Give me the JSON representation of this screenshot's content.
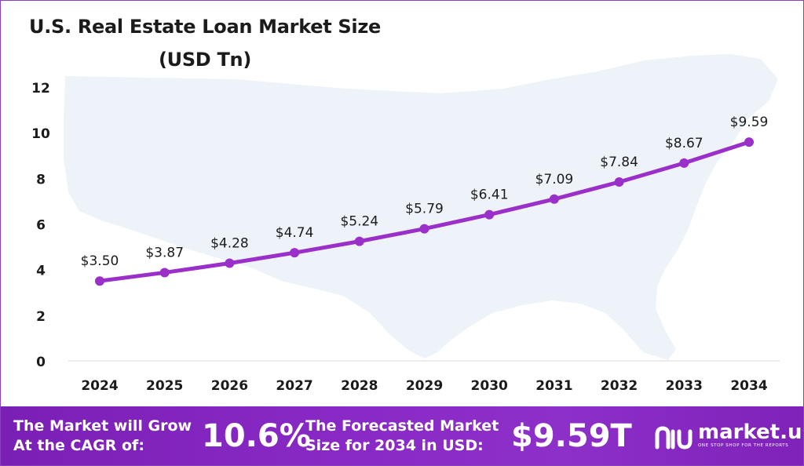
{
  "chart_data": {
    "type": "line",
    "title": "U.S. Real Estate Loan Market Size",
    "subtitle": "(USD Tn)",
    "categories": [
      "2024",
      "2025",
      "2026",
      "2027",
      "2028",
      "2029",
      "2030",
      "2031",
      "2032",
      "2033",
      "2034"
    ],
    "values": [
      3.5,
      3.87,
      4.28,
      4.74,
      5.24,
      5.79,
      6.41,
      7.09,
      7.84,
      8.67,
      9.59
    ],
    "data_labels": [
      "$3.50",
      "$3.87",
      "$4.28",
      "$4.74",
      "$5.24",
      "$5.79",
      "$6.41",
      "$7.09",
      "$7.84",
      "$8.67",
      "$9.59"
    ],
    "y_ticks": [
      "0",
      "2",
      "4",
      "6",
      "8",
      "10",
      "12"
    ],
    "ylim": [
      0,
      12
    ],
    "grid": false,
    "legend": "none",
    "colors": {
      "line": "#9b2fc9",
      "marker": "#9b2fc9",
      "map": "#eef2f9"
    }
  },
  "footer": {
    "cagr_text_line1": "The Market will Grow",
    "cagr_text_line2": "At the CAGR of:",
    "cagr_value": "10.6%",
    "forecast_text_line1": "The Forecasted Market",
    "forecast_text_line2": "Size for 2034 in USD:",
    "forecast_value": "$9.59T",
    "brand_name": "market.us",
    "brand_tagline": "ONE STOP SHOP FOR THE REPORTS",
    "colors": {
      "background": "#8a2ac6",
      "text": "#ffffff"
    }
  }
}
